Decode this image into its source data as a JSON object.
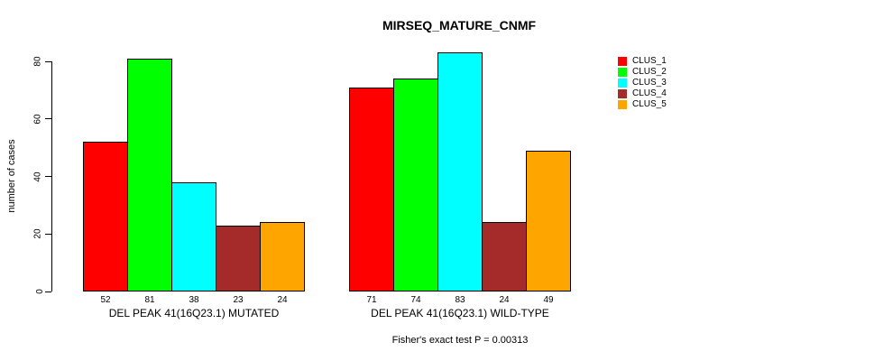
{
  "chart_data": {
    "type": "bar",
    "title": "MIRSEQ_MATURE_CNMF",
    "xlabel": "",
    "ylabel": "number of cases",
    "ylim": [
      0,
      80
    ],
    "yticks": [
      0,
      20,
      40,
      60,
      80
    ],
    "grid": false,
    "legend_position": "right-outside",
    "bar_border_color": "#000000",
    "categories": [
      "DEL PEAK 41(16Q23.1) MUTATED",
      "DEL PEAK 41(16Q23.1) WILD-TYPE"
    ],
    "series": [
      {
        "name": "CLUS_1",
        "color": "#ff0000",
        "values": [
          52,
          71
        ]
      },
      {
        "name": "CLUS_2",
        "color": "#00ff00",
        "values": [
          81,
          74
        ]
      },
      {
        "name": "CLUS_3",
        "color": "#00ffff",
        "values": [
          38,
          83
        ]
      },
      {
        "name": "CLUS_4",
        "color": "#a52a2a",
        "values": [
          23,
          24
        ]
      },
      {
        "name": "CLUS_5",
        "color": "#ffa500",
        "values": [
          24,
          49
        ]
      }
    ],
    "bar_value_labels_shown": true,
    "annotation": "Fisher's exact test P = 0.00313"
  }
}
